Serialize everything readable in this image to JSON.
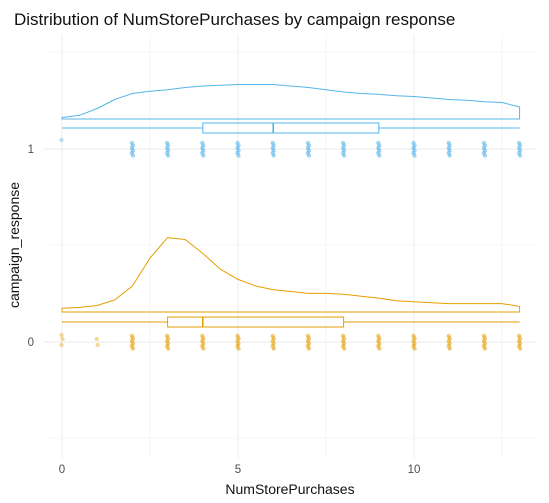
{
  "chart_data": {
    "type": "raincloud",
    "title": "Distribution of NumStorePurchases by campaign response",
    "xlabel": "NumStorePurchases",
    "ylabel": "campaign_response",
    "xlim": [
      -0.6,
      13.4
    ],
    "x_ticks": [
      0,
      5,
      10
    ],
    "x_tick_labels": [
      "0",
      "5",
      "10"
    ],
    "grid": true,
    "series": [
      {
        "name": "0",
        "color": "#E69F00",
        "density": {
          "x": [
            0,
            0.5,
            1,
            1.5,
            2,
            2.5,
            3,
            3.5,
            4,
            4.5,
            5,
            5.5,
            6,
            6.5,
            7,
            7.5,
            8,
            8.5,
            9,
            9.5,
            10,
            10.5,
            11,
            11.5,
            12,
            12.5,
            13
          ],
          "y": [
            0.04,
            0.05,
            0.07,
            0.13,
            0.28,
            0.58,
            0.8,
            0.78,
            0.63,
            0.46,
            0.35,
            0.28,
            0.24,
            0.22,
            0.2,
            0.2,
            0.19,
            0.17,
            0.15,
            0.12,
            0.11,
            0.1,
            0.09,
            0.09,
            0.09,
            0.09,
            0.06
          ]
        },
        "boxplot": {
          "min": 0,
          "q1": 3,
          "median": 4,
          "q3": 8,
          "max": 13
        },
        "points_x": [
          0,
          1,
          2,
          3,
          4,
          5,
          6,
          7,
          8,
          9,
          10,
          11,
          12,
          13
        ]
      },
      {
        "name": "1",
        "color": "#56B4E9",
        "density": {
          "x": [
            0,
            0.5,
            1,
            1.5,
            2,
            2.5,
            3,
            3.5,
            4,
            4.5,
            5,
            5.5,
            6,
            6.5,
            7,
            7.5,
            8,
            8.5,
            9,
            9.5,
            10,
            10.5,
            11,
            11.5,
            12,
            12.5,
            13
          ],
          "y": [
            0.02,
            0.05,
            0.14,
            0.26,
            0.34,
            0.37,
            0.39,
            0.42,
            0.44,
            0.45,
            0.46,
            0.46,
            0.46,
            0.44,
            0.42,
            0.39,
            0.36,
            0.34,
            0.33,
            0.31,
            0.3,
            0.28,
            0.26,
            0.25,
            0.23,
            0.22,
            0.16
          ]
        },
        "boxplot": {
          "min": 0,
          "q1": 4,
          "median": 6,
          "q3": 9,
          "max": 13
        },
        "points_x": [
          0,
          2,
          3,
          4,
          5,
          6,
          7,
          8,
          9,
          10,
          11,
          12,
          13
        ]
      }
    ]
  }
}
